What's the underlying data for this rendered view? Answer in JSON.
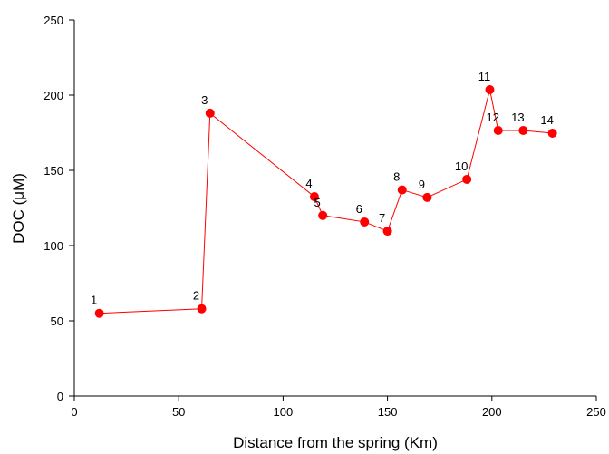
{
  "chart_data": {
    "type": "line",
    "x_label": "Distance from the spring (Km)",
    "y_label": "DOC (μM)",
    "x": [
      12,
      61,
      65,
      115,
      119,
      139,
      150,
      157,
      169,
      188,
      199,
      203,
      215,
      229
    ],
    "series": [
      {
        "color": "#ff0000",
        "values": [
          55,
          58,
          188,
          132.5,
          120,
          115.7,
          109.6,
          137,
          132,
          144,
          203.6,
          176.5,
          176.5,
          174.7
        ],
        "point_labels": [
          "1",
          "2",
          "3",
          "4",
          "5",
          "6",
          "7",
          "8",
          "9",
          "10",
          "11",
          "12",
          "13",
          "14"
        ]
      }
    ],
    "xlim": [
      0,
      250
    ],
    "xticks": [
      0,
      50,
      100,
      150,
      200,
      250
    ],
    "ylim": [
      0,
      250
    ],
    "yticks": [
      0,
      50,
      100,
      150,
      200,
      250
    ],
    "grid": false
  }
}
